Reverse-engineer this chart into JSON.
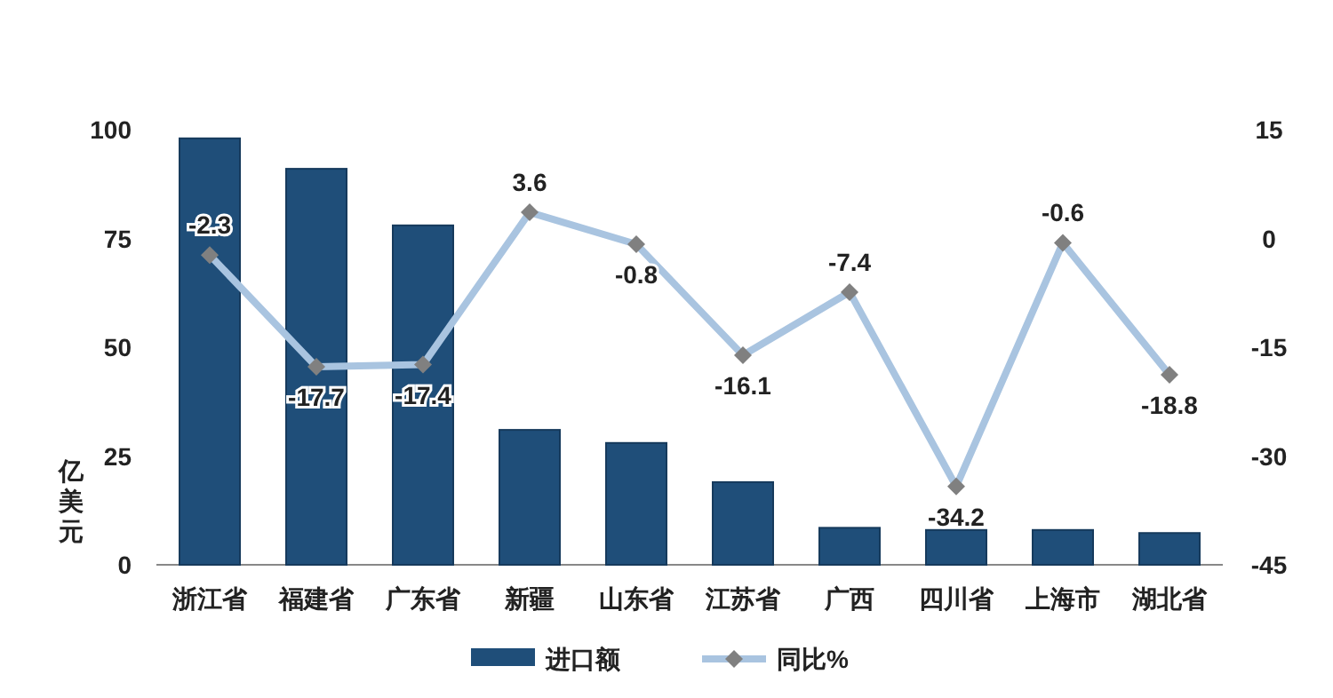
{
  "chart_data": {
    "type": "bar",
    "categories": [
      "浙江省",
      "福建省",
      "广东省",
      "新疆",
      "山东省",
      "江苏省",
      "广西",
      "四川省",
      "上海市",
      "湖北省"
    ],
    "series": [
      {
        "name": "进口额",
        "color": "#1f4e79",
        "values": [
          98,
          91,
          78,
          31,
          28,
          19,
          8.5,
          8,
          8,
          7.3
        ]
      },
      {
        "name": "同比%",
        "type": "line",
        "axis": "y2",
        "color": "#a9c4e0",
        "marker": "diamond",
        "values": [
          -2.3,
          -17.7,
          -17.4,
          3.6,
          -0.8,
          -16.1,
          -7.4,
          -34.2,
          -0.6,
          -18.8
        ],
        "value_labels": [
          "-2.3",
          "-17.7",
          "-17.4",
          "3.6",
          "-0.8",
          "-16.1",
          "-7.4",
          "-34.2",
          "-0.6",
          "-18.8"
        ]
      }
    ],
    "ylabel": "亿美元",
    "ylim": [
      0,
      100
    ],
    "yticks": [
      0,
      25,
      50,
      75,
      100
    ],
    "y2lim": [
      -45,
      15
    ],
    "y2ticks": [
      -45,
      -30,
      -15,
      0,
      15
    ],
    "grid": false,
    "legend": "bottom"
  }
}
